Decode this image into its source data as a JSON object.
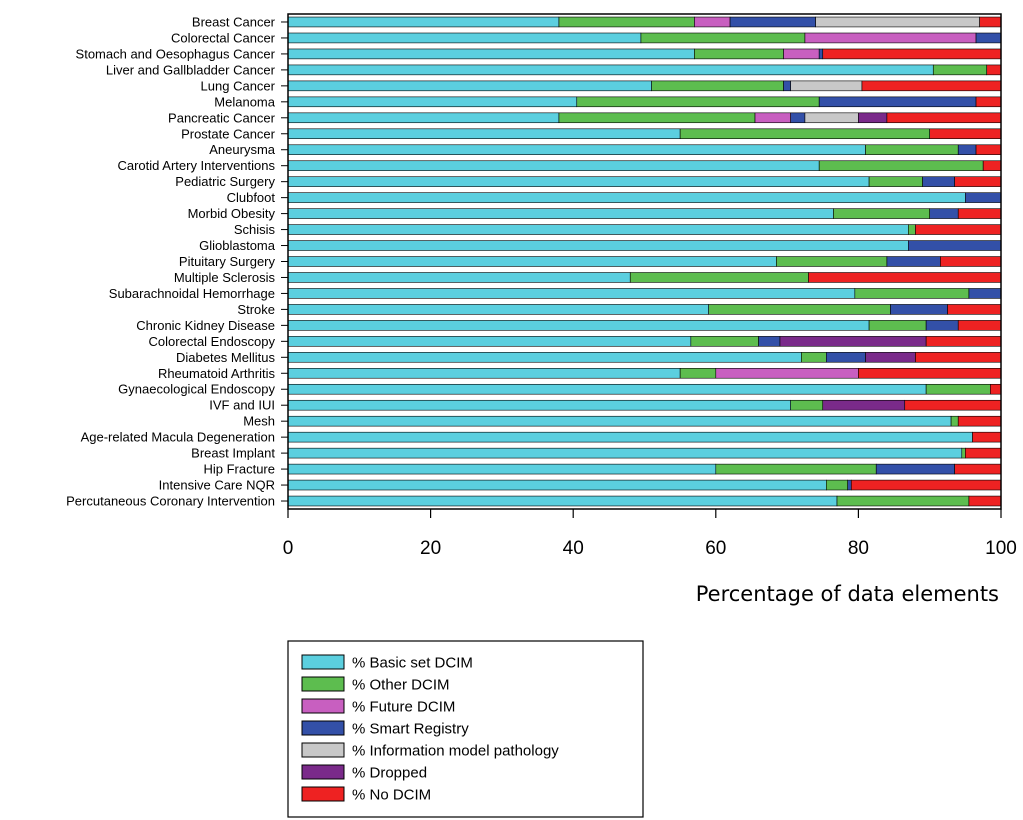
{
  "chart_data": {
    "type": "bar",
    "orientation": "horizontal",
    "stacked": true,
    "xlabel": "Percentage of data elements",
    "ylabel": "",
    "xlim": [
      0,
      100
    ],
    "xticks": [
      "0",
      "20",
      "40",
      "60",
      "80",
      "100"
    ],
    "legend_position": "bottom-left",
    "categories": [
      "Breast Cancer",
      "Colorectal Cancer",
      "Stomach and Oesophagus Cancer",
      "Liver and Gallbladder Cancer",
      "Lung Cancer",
      "Melanoma",
      "Pancreatic Cancer",
      "Prostate Cancer",
      "Aneurysma",
      "Carotid Artery Interventions",
      "Pediatric Surgery",
      "Clubfoot",
      "Morbid Obesity",
      "Schisis",
      "Glioblastoma",
      "Pituitary Surgery",
      "Multiple Sclerosis",
      "Subarachnoidal Hemorrhage",
      "Stroke",
      "Chronic Kidney Disease",
      "Colorectal Endoscopy",
      "Diabetes Mellitus",
      "Rheumatoid Arthritis",
      "Gynaecological Endoscopy",
      "IVF and IUI",
      "Mesh",
      "Age-related Macula Degeneration",
      "Breast Implant",
      "Hip Fracture",
      "Intensive Care NQR",
      "Percutaneous Coronary Intervention"
    ],
    "series": [
      {
        "name": "% Basic set DCIM",
        "color": "#5bcfdf",
        "values": [
          38,
          49.5,
          57,
          90.5,
          51,
          40.5,
          38,
          55,
          81,
          74.5,
          81.5,
          95,
          76.5,
          87,
          87,
          68.5,
          48,
          79.5,
          59,
          81.5,
          56.5,
          72,
          55,
          89.5,
          70.5,
          93,
          96,
          94.5,
          60,
          75.5,
          77
        ]
      },
      {
        "name": "% Other DCIM",
        "color": "#5dbd4f",
        "values": [
          19,
          23,
          12.5,
          7.5,
          18.5,
          34,
          27.5,
          35,
          13,
          23,
          7.5,
          0,
          13.5,
          1,
          0,
          15.5,
          25,
          16,
          25.5,
          8,
          9.5,
          3.5,
          5,
          9,
          4.5,
          1,
          0,
          0.5,
          22.5,
          3,
          18.5
        ]
      },
      {
        "name": "% Future DCIM",
        "color": "#c85fc0",
        "values": [
          5,
          24,
          5,
          0,
          0,
          0,
          5,
          0,
          0,
          0,
          0,
          0,
          0,
          0,
          0,
          0,
          0,
          0,
          0,
          0,
          0,
          0,
          20,
          0,
          0,
          0,
          0,
          0,
          0,
          0,
          0
        ]
      },
      {
        "name": "% Smart Registry",
        "color": "#3350a8",
        "values": [
          12,
          3.5,
          0.5,
          0,
          1,
          22,
          2,
          0,
          2.5,
          0,
          4.5,
          5,
          4,
          0,
          13,
          7.5,
          0,
          4.5,
          8,
          4.5,
          3,
          5.5,
          0,
          0,
          0,
          0,
          0,
          0,
          11,
          0.5,
          0
        ]
      },
      {
        "name": "% Information model pathology",
        "color": "#c8c8c8",
        "values": [
          23,
          0,
          0,
          0,
          10,
          0,
          7.5,
          0,
          0,
          0,
          0,
          0,
          0,
          0,
          0,
          0,
          0,
          0,
          0,
          0,
          0,
          0,
          0,
          0,
          0,
          0,
          0,
          0,
          0,
          0,
          0
        ]
      },
      {
        "name": "% Dropped",
        "color": "#7a2a8a",
        "values": [
          0,
          0,
          0,
          0,
          0,
          0,
          4,
          0,
          0,
          0,
          0,
          0,
          0,
          0,
          0,
          0,
          0,
          0,
          0,
          0,
          20.5,
          7,
          0,
          0,
          11.5,
          0,
          0,
          0,
          0,
          0,
          0
        ]
      },
      {
        "name": "% No DCIM",
        "color": "#ee2222",
        "values": [
          3,
          0,
          25,
          2,
          19.5,
          3.5,
          16,
          10,
          3.5,
          2.5,
          6.5,
          0,
          6,
          12,
          0,
          8.5,
          27,
          0,
          7.5,
          6,
          10.5,
          12,
          20,
          1.5,
          13.5,
          6,
          4,
          5,
          6.5,
          21,
          4.5
        ]
      }
    ]
  }
}
